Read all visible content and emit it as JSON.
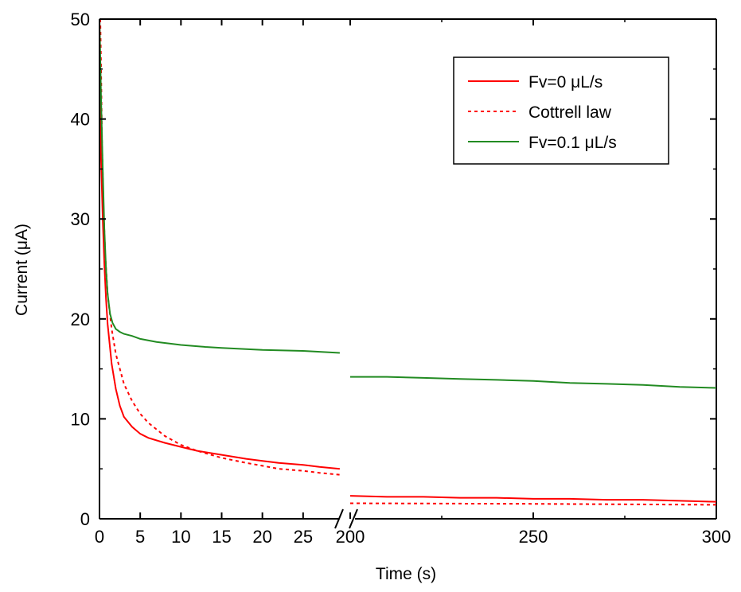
{
  "chart_data": {
    "type": "line",
    "title": "",
    "xlabel": "Time (s)",
    "ylabel": "Current (μA)",
    "ylim": [
      0,
      50
    ],
    "y_ticks": [
      0,
      10,
      20,
      30,
      40,
      50
    ],
    "x_axis_break": true,
    "x_segments": [
      {
        "xlim": [
          0,
          30
        ],
        "ticks": [
          0,
          5,
          10,
          15,
          20,
          25
        ]
      },
      {
        "xlim": [
          200,
          300
        ],
        "ticks": [
          200,
          250,
          300
        ]
      }
    ],
    "grid": false,
    "legend_position": "top-right",
    "series": [
      {
        "name": "Fv=0 μL/s",
        "color": "#ff0000",
        "style": "solid",
        "x": [
          0,
          0.2,
          0.4,
          0.6,
          0.8,
          1,
          1.5,
          2,
          2.5,
          3,
          4,
          5,
          6,
          8,
          10,
          12,
          15,
          18,
          20,
          22,
          25,
          27,
          29.5,
          200,
          210,
          220,
          230,
          240,
          250,
          260,
          270,
          280,
          290,
          300
        ],
        "y": [
          50,
          36,
          30,
          25.5,
          22,
          19.5,
          15.5,
          13,
          11.3,
          10.2,
          9.2,
          8.5,
          8.1,
          7.6,
          7.2,
          6.8,
          6.4,
          6.0,
          5.8,
          5.6,
          5.4,
          5.2,
          5.0,
          2.3,
          2.2,
          2.2,
          2.1,
          2.1,
          2.0,
          2.0,
          1.9,
          1.9,
          1.8,
          1.7
        ]
      },
      {
        "name": "Cottrell law",
        "color": "#ff0000",
        "style": "dotted",
        "x": [
          0.1,
          0.2,
          0.3,
          0.5,
          0.7,
          1,
          1.5,
          2,
          2.5,
          3,
          4,
          5,
          6,
          8,
          10,
          12,
          15,
          18,
          20,
          22,
          25,
          27,
          29.5,
          200,
          250,
          300
        ],
        "y": [
          50,
          45,
          38,
          31,
          26.5,
          22.5,
          19,
          16.5,
          15,
          13.5,
          11.8,
          10.5,
          9.6,
          8.3,
          7.4,
          6.8,
          6.1,
          5.6,
          5.3,
          5.0,
          4.8,
          4.6,
          4.4,
          1.55,
          1.5,
          1.4
        ]
      },
      {
        "name": "Fv=0.1 μL/s",
        "color": "#228b22",
        "style": "solid",
        "x": [
          0,
          0.2,
          0.4,
          0.6,
          0.8,
          1,
          1.3,
          1.6,
          2,
          2.5,
          3,
          4,
          5,
          7,
          10,
          13,
          15,
          20,
          25,
          29.5,
          200,
          210,
          220,
          230,
          240,
          250,
          260,
          270,
          280,
          290,
          300
        ],
        "y": [
          50,
          42,
          35,
          29,
          25,
          22.5,
          20.5,
          19.6,
          19.0,
          18.7,
          18.5,
          18.3,
          18.0,
          17.7,
          17.4,
          17.2,
          17.1,
          16.9,
          16.8,
          16.6,
          14.2,
          14.2,
          14.1,
          14.0,
          13.9,
          13.8,
          13.6,
          13.5,
          13.4,
          13.2,
          13.1
        ]
      }
    ]
  }
}
